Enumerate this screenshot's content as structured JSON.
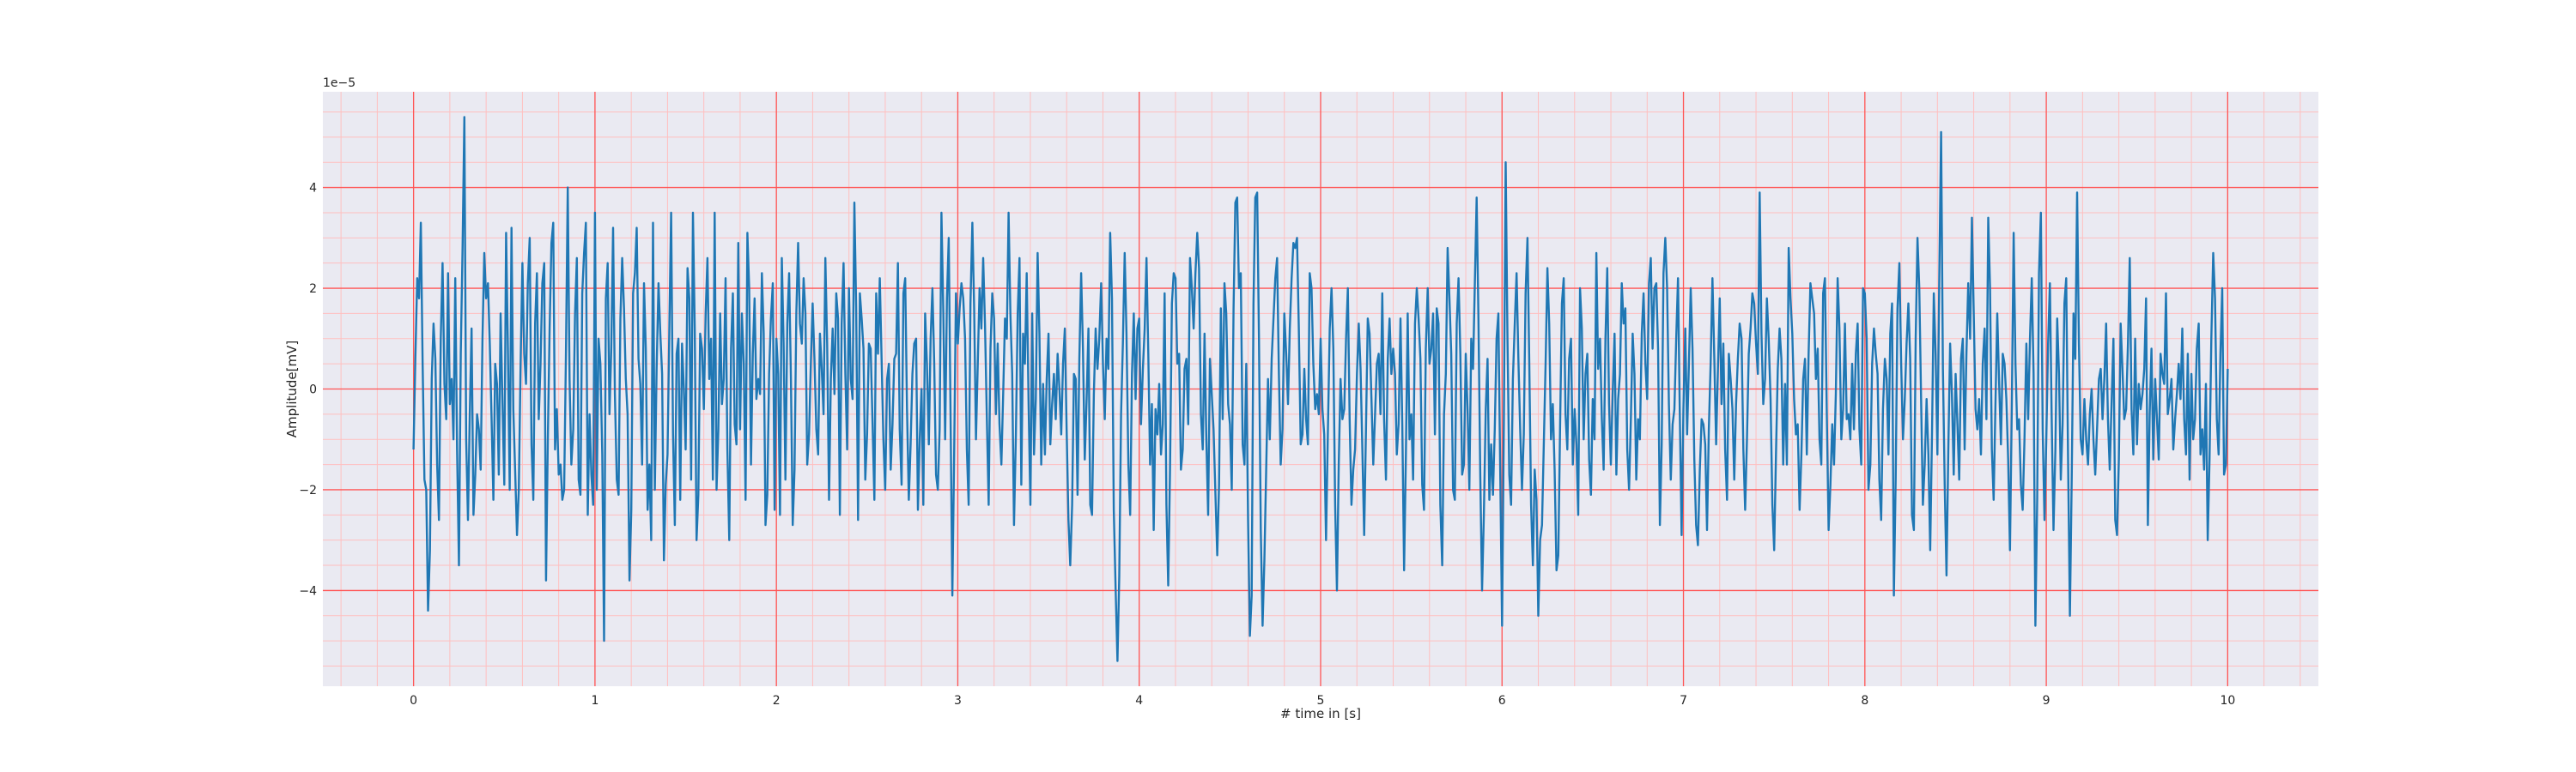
{
  "chart_data": {
    "type": "line",
    "title": "",
    "xlabel": "# time in [s]",
    "ylabel": "Amplitude[mV]",
    "y_offset_label": "1e−5",
    "xlim": [
      -0.5,
      10.5
    ],
    "ylim": [
      -5.9,
      5.9
    ],
    "xticks": [
      0,
      1,
      2,
      3,
      4,
      5,
      6,
      7,
      8,
      9,
      10
    ],
    "yticks": [
      -4,
      -2,
      0,
      2,
      4
    ],
    "grid": {
      "major": true,
      "minor": true,
      "major_color": "#ff5555",
      "minor_color": "#ffbfbf"
    },
    "colors": {
      "plot_background": "#eaeaf2",
      "line": "#1f77b4"
    },
    "x_step": 0.01,
    "series": [
      {
        "x_start": 0,
        "values": [
          -1.2,
          0.6,
          2.2,
          1.8,
          3.3,
          0.5,
          -1.8,
          -2.0,
          -4.4,
          -3.2,
          0.2,
          1.3,
          0.6,
          -1.5,
          -2.6,
          1.0,
          2.5,
          0.1,
          -0.6,
          2.3,
          -0.3,
          0.2,
          -1.0,
          2.2,
          -1.2,
          -3.5,
          0.7,
          2.8,
          5.4,
          -1.0,
          -2.6,
          -0.5,
          1.2,
          -2.5,
          -1.7,
          -0.5,
          -0.8,
          -1.6,
          1.0,
          2.7,
          1.8,
          2.1,
          0.9,
          -0.6,
          -2.2,
          0.5,
          0.1,
          -1.7,
          1.5,
          -0.3,
          -1.9,
          3.1,
          0.8,
          -2.0,
          3.2,
          -0.4,
          -1.6,
          -2.9,
          -2.0,
          0.5,
          2.5,
          0.7,
          0.1,
          2.1,
          3.0,
          -1.1,
          -2.2,
          1.3,
          2.3,
          -0.6,
          0.5,
          2.1,
          2.5,
          -3.8,
          -1.0,
          1.2,
          2.9,
          3.3,
          -1.2,
          -0.4,
          -1.7,
          -1.5,
          -2.2,
          -2.0,
          0.7,
          4.0,
          0.2,
          -1.5,
          -0.8,
          1.5,
          2.6,
          -1.8,
          -2.1,
          1.9,
          2.7,
          3.3,
          -2.5,
          -0.5,
          -1.7,
          -2.3
        ]
      },
      {
        "x_start": 1.0,
        "values": [
          3.5,
          -2.0,
          1.0,
          0.5,
          -1.3,
          -5.0,
          1.8,
          2.5,
          -0.5,
          0.8,
          3.2,
          -0.1,
          -1.8,
          -2.1,
          1.4,
          2.6,
          1.6,
          0.2,
          -0.5,
          -3.8,
          -2.4,
          1.9,
          2.3,
          3.2,
          0.6,
          0.1,
          -1.5,
          2.1,
          0.8,
          -2.4,
          -1.5,
          -3.0,
          3.3,
          -2.0,
          0.4,
          2.1,
          1.1,
          0.3,
          -3.4,
          -1.9,
          -1.3,
          1.2,
          3.5,
          -0.9,
          -2.7,
          0.7,
          1.0,
          -2.2,
          0.9,
          0.0,
          -1.2,
          2.4,
          1.8,
          -1.8,
          3.5,
          1.2,
          -3.0,
          -2.1,
          1.1,
          0.8,
          -0.4,
          1.5,
          2.6,
          0.2,
          1.0,
          -1.8,
          3.5,
          -2.0,
          -0.8,
          1.5,
          -0.3,
          0.2,
          2.2,
          -1.2,
          -3.0,
          0.8,
          1.9,
          -0.7,
          -1.1,
          2.9,
          -0.8,
          1.5,
          0.5,
          -2.2,
          3.1,
          2.0,
          -1.5,
          0.7,
          1.8,
          -0.2,
          0.2,
          -0.1,
          2.3,
          1.1,
          -2.7,
          -2.1,
          0.3,
          1.4,
          2.1,
          -2.4
        ]
      },
      {
        "x_start": 2.0,
        "values": [
          1.0,
          0.3,
          -2.5,
          2.6,
          0.9,
          -1.8,
          1.3,
          2.3,
          0.2,
          -2.7,
          -1.6,
          1.5,
          2.9,
          1.3,
          0.9,
          2.2,
          1.5,
          -1.5,
          -0.9,
          0.5,
          1.7,
          0.6,
          -0.8,
          -1.3,
          1.1,
          0.4,
          -0.5,
          2.6,
          0.9,
          -2.2,
          0.2,
          1.2,
          -0.1,
          1.9,
          1.4,
          -2.5,
          1.3,
          2.5,
          0.3,
          -1.2,
          2.0,
          0.2,
          -0.2,
          3.7,
          1.6,
          -2.6,
          1.9,
          1.4,
          0.8,
          -1.8,
          -0.9,
          0.9,
          0.8,
          -0.7,
          -2.2,
          1.9,
          0.7,
          2.2,
          0.6,
          -1.0,
          -2.0,
          0.2,
          0.5,
          -1.6,
          -0.7,
          0.6,
          0.7,
          2.5,
          -0.8,
          -1.9,
          1.9,
          2.2,
          -0.4,
          -2.2,
          -1.1,
          0.3,
          0.9,
          1.0,
          -2.4,
          -1.0,
          0.0,
          -2.3,
          1.5,
          0.5,
          -1.1,
          1.0,
          2.0,
          0.5,
          -1.7,
          -2.0,
          -0.8,
          3.5,
          1.5,
          -1.0,
          1.8,
          3.0,
          -0.5,
          -4.1,
          -1.3,
          1.9
        ]
      },
      {
        "x_start": 3.0,
        "values": [
          0.9,
          1.6,
          2.1,
          1.8,
          1.0,
          -1.2,
          -2.3,
          1.7,
          3.3,
          1.6,
          -1.0,
          0.5,
          2.0,
          1.2,
          2.6,
          1.3,
          -0.6,
          -2.3,
          0.8,
          1.9,
          1.4,
          -0.5,
          0.9,
          -0.7,
          -1.5,
          -0.1,
          1.4,
          1.0,
          3.5,
          1.5,
          0.3,
          -2.7,
          -0.9,
          1.5,
          2.6,
          -1.9,
          1.1,
          0.5,
          2.3,
          -0.3,
          -2.3,
          1.5,
          -1.3,
          -0.2,
          2.7,
          1.1,
          -1.5,
          0.1,
          -1.3,
          0.2,
          1.1,
          -1.1,
          -0.3,
          0.3,
          -0.6,
          0.7,
          0.0,
          -0.9,
          0.5,
          1.2,
          -0.8,
          -2.6,
          -3.5,
          -2.3,
          0.3,
          0.2,
          -2.1,
          0.6,
          2.3,
          0.8,
          -1.4,
          -0.2,
          1.2,
          -2.3,
          -2.5,
          -0.1,
          1.2,
          0.4,
          1.0,
          2.1,
          0.5,
          -0.6,
          1.0,
          0.4,
          3.1,
          1.8,
          -2.4,
          -4.0,
          -5.4,
          -3.7,
          -0.5,
          0.9,
          2.7,
          1.1,
          -1.5,
          -2.5,
          0.3,
          1.5,
          -0.2,
          1.2
        ]
      },
      {
        "x_start": 4.0,
        "values": [
          1.4,
          -0.7,
          0.4,
          1.2,
          2.6,
          0.7,
          -1.5,
          -0.3,
          -2.8,
          -0.4,
          -0.9,
          0.1,
          -1.3,
          -0.7,
          1.9,
          -2.3,
          -3.9,
          -1.6,
          1.7,
          2.3,
          2.2,
          0.5,
          0.7,
          -1.6,
          -1.2,
          0.4,
          0.6,
          -0.7,
          2.6,
          2.0,
          1.2,
          2.3,
          3.1,
          2.4,
          -0.5,
          -1.2,
          1.1,
          -1.0,
          -2.5,
          0.6,
          -0.1,
          -0.8,
          -2.1,
          -3.3,
          -1.9,
          1.6,
          -0.6,
          2.1,
          1.5,
          -0.3,
          -0.7,
          -2.0,
          1.6,
          3.7,
          3.8,
          2.0,
          2.3,
          -1.1,
          -1.5,
          0.5,
          -2.6,
          -4.9,
          -4.1,
          1.7,
          3.8,
          3.9,
          1.0,
          -2.8,
          -4.7,
          -3.4,
          -1.6,
          0.2,
          -1.0,
          0.6,
          1.4,
          2.2,
          2.6,
          0.3,
          -1.5,
          -0.8,
          1.5,
          0.7,
          -0.3,
          1.2,
          2.2,
          2.9,
          2.8,
          3.0,
          1.2,
          -1.1,
          -0.9,
          0.4,
          -0.6,
          -1.1,
          2.3,
          2.0,
          0.5,
          -0.4,
          -0.1,
          -0.5
        ]
      },
      {
        "x_start": 5.0,
        "values": [
          1.0,
          -0.4,
          -0.9,
          -3.0,
          -0.8,
          1.2,
          2.0,
          0.8,
          -2.3,
          -4.0,
          -1.5,
          0.2,
          -0.6,
          -0.4,
          1.0,
          2.0,
          -0.6,
          -2.3,
          -1.6,
          -1.2,
          0.3,
          1.3,
          0.4,
          -1.2,
          -2.9,
          -0.8,
          1.4,
          1.1,
          -0.2,
          -1.5,
          -0.5,
          0.5,
          0.7,
          -0.5,
          1.9,
          -0.6,
          -1.8,
          0.6,
          1.4,
          0.3,
          0.8,
          0.3,
          -1.3,
          -0.7,
          1.4,
          -0.7,
          -3.6,
          -1.3,
          1.5,
          -1.0,
          -0.5,
          -1.8,
          1.3,
          2.0,
          1.4,
          0.6,
          -1.9,
          -2.4,
          0.8,
          2.0,
          0.5,
          0.8,
          1.5,
          -0.9,
          1.6,
          1.3,
          -2.3,
          -3.5,
          -0.5,
          0.3,
          2.8,
          1.8,
          0.7,
          -2.0,
          -2.2,
          1.3,
          2.2,
          0.7,
          -1.7,
          -1.5,
          0.7,
          -0.4,
          -2.0,
          1.0,
          0.4,
          2.1,
          3.8,
          1.4,
          -1.7,
          -4.0,
          -2.5,
          -0.4,
          0.6,
          -2.2,
          -1.1,
          -2.1,
          -0.8,
          1.0,
          1.5,
          -1.7
        ]
      },
      {
        "x_start": 6.0,
        "values": [
          -4.7,
          -0.6,
          4.5,
          1.0,
          -1.7,
          -2.3,
          0.2,
          1.3,
          2.3,
          0.6,
          -0.8,
          -2.0,
          -0.9,
          1.9,
          3.0,
          0.5,
          -2.3,
          -3.5,
          -1.6,
          -2.2,
          -4.5,
          -3.0,
          -2.7,
          -1.1,
          0.5,
          2.4,
          1.3,
          -1.0,
          -0.3,
          -1.6,
          -3.6,
          -3.3,
          -0.7,
          1.7,
          2.2,
          -0.5,
          -1.2,
          0.6,
          1.0,
          -1.5,
          -0.4,
          -1.1,
          -2.5,
          2.0,
          1.2,
          -1.0,
          0.3,
          0.7,
          -1.4,
          -2.1,
          -0.2,
          -1.0,
          2.7,
          0.4,
          1.0,
          -0.6,
          -1.6,
          1.0,
          2.4,
          -0.3,
          -1.5,
          -0.1,
          1.1,
          -1.7,
          -0.2,
          0.3,
          2.1,
          1.3,
          1.6,
          -1.2,
          -2.0,
          -0.6,
          1.1,
          0.3,
          -1.8,
          -0.6,
          -1.0,
          1.1,
          1.9,
          0.5,
          -0.2,
          2.1,
          2.6,
          0.8,
          2.0,
          2.1,
          0.8,
          -2.7,
          -1.1,
          2.3,
          3.0,
          2.0,
          -0.3,
          -1.8,
          -0.7,
          -0.4,
          1.0,
          2.2,
          -0.5,
          -2.9
        ]
      },
      {
        "x_start": 7.0,
        "values": [
          -0.4,
          1.2,
          -0.9,
          0.5,
          2.0,
          0.8,
          -1.4,
          -2.7,
          -3.1,
          -1.6,
          -0.6,
          -0.7,
          -1.1,
          -2.8,
          -0.8,
          0.5,
          2.2,
          0.6,
          -1.1,
          0.4,
          1.8,
          -0.3,
          0.9,
          -1.2,
          -2.2,
          0.7,
          0.2,
          -0.4,
          -1.8,
          -0.3,
          0.6,
          1.3,
          1.0,
          -1.2,
          -2.4,
          -1.0,
          0.7,
          1.2,
          1.9,
          1.7,
          0.9,
          0.3,
          3.9,
          1.1,
          -0.3,
          0.2,
          1.8,
          1.0,
          -0.2,
          -2.3,
          -3.2,
          -1.3,
          0.4,
          1.2,
          0.6,
          -1.5,
          0.1,
          -1.5,
          2.8,
          1.8,
          1.1,
          -0.2,
          -0.9,
          -0.7,
          -2.4,
          -1.3,
          0.2,
          0.6,
          -1.3,
          0.7,
          2.1,
          1.8,
          1.5,
          0.2,
          0.8,
          -1.0,
          -1.5,
          1.9,
          2.2,
          -0.5,
          -2.8,
          -1.9,
          -0.7,
          -1.5,
          -0.1,
          2.2,
          1.2,
          -1.0,
          -0.4,
          1.3,
          -0.6,
          -0.5,
          -1.0,
          0.5,
          -0.8,
          0.7,
          1.3,
          -0.8,
          -1.5,
          2.0
        ]
      },
      {
        "x_start": 8.0,
        "values": [
          1.9,
          1.0,
          -2.0,
          -1.5,
          0.5,
          1.2,
          0.7,
          0.3,
          -1.8,
          -2.6,
          -0.4,
          0.6,
          0.2,
          -1.3,
          1.1,
          1.7,
          -4.1,
          -1.8,
          1.6,
          2.5,
          0.5,
          -1.0,
          -0.2,
          0.9,
          1.7,
          0.6,
          -2.5,
          -2.8,
          1.0,
          3.0,
          2.0,
          -0.2,
          -2.3,
          -1.5,
          -0.2,
          -1.3,
          -3.2,
          -0.9,
          1.9,
          0.7,
          -1.3,
          2.1,
          5.1,
          0.4,
          -1.9,
          -3.7,
          -1.2,
          0.9,
          -0.1,
          -1.7,
          0.3,
          -0.7,
          -1.8,
          0.6,
          1.0,
          -1.2,
          0.7,
          2.1,
          1.0,
          3.4,
          1.5,
          -0.4,
          -0.8,
          -0.2,
          -1.3,
          0.5,
          1.2,
          -0.6,
          3.4,
          2.0,
          -1.2,
          -2.2,
          -0.3,
          1.5,
          0.1,
          -1.1,
          0.7,
          0.5,
          -0.2,
          -1.4,
          -3.2,
          -0.4,
          3.1,
          0.5,
          -0.8,
          -0.6,
          -1.9,
          -2.4,
          -1.0,
          0.9,
          -0.6,
          1.0,
          2.2,
          0.3,
          -4.7,
          -2.2,
          2.3,
          3.5,
          -0.8,
          -2.6
        ]
      },
      {
        "x_start": 9.0,
        "values": [
          -1.0,
          0.9,
          2.1,
          -0.6,
          -2.8,
          -1.2,
          1.4,
          0.3,
          -1.8,
          -0.7,
          1.7,
          2.2,
          -1.3,
          -4.5,
          -1.8,
          1.5,
          0.6,
          3.9,
          0.9,
          -1.0,
          -1.3,
          -0.2,
          -1.0,
          -1.5,
          -0.5,
          0.0,
          -1.0,
          -1.7,
          -0.8,
          0.2,
          0.4,
          -0.6,
          0.2,
          1.3,
          -0.6,
          -1.6,
          -0.3,
          1.0,
          -2.6,
          -2.9,
          -1.4,
          1.3,
          0.4,
          -0.6,
          -0.4,
          0.9,
          2.6,
          -0.4,
          -1.3,
          1.0,
          -1.1,
          0.1,
          -0.4,
          -0.1,
          0.4,
          1.8,
          -2.7,
          -0.5,
          0.8,
          -1.4,
          0.2,
          -0.6,
          -1.4,
          0.7,
          0.3,
          0.1,
          1.9,
          -0.5,
          -0.2,
          0.2,
          -1.2,
          -0.6,
          -0.1,
          0.5,
          -0.2,
          1.2,
          -0.6,
          -1.3,
          0.7,
          -1.8,
          0.3,
          -1.0,
          -0.6,
          0.8,
          1.3,
          -1.3,
          -0.8,
          -1.6,
          0.1,
          -3.0,
          -1.4,
          1.0,
          2.7,
          1.8,
          -0.6,
          -1.3,
          0.7,
          2.0,
          -1.7,
          -1.5
        ]
      },
      {
        "x_start": 10.0,
        "values": [
          0.4
        ]
      }
    ]
  }
}
